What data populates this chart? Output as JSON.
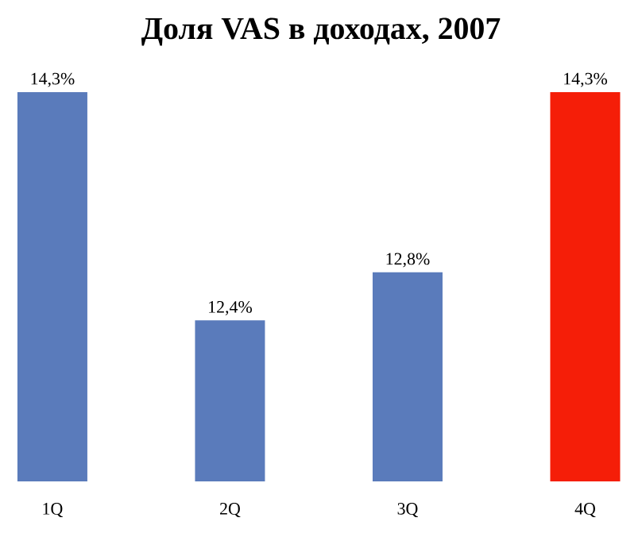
{
  "chart_data": {
    "type": "bar",
    "title": "Доля VAS в доходах, 2007",
    "categories": [
      "1Q",
      "2Q",
      "3Q",
      "4Q"
    ],
    "values": [
      14.3,
      12.4,
      12.8,
      14.3
    ],
    "value_labels": [
      "14,3%",
      "12,4%",
      "12,8%",
      "14,3%"
    ],
    "colors": [
      "#5a7bbb",
      "#5a7bbb",
      "#5a7bbb",
      "#f51e08"
    ],
    "ylim": [
      11.06,
      14.3
    ]
  }
}
